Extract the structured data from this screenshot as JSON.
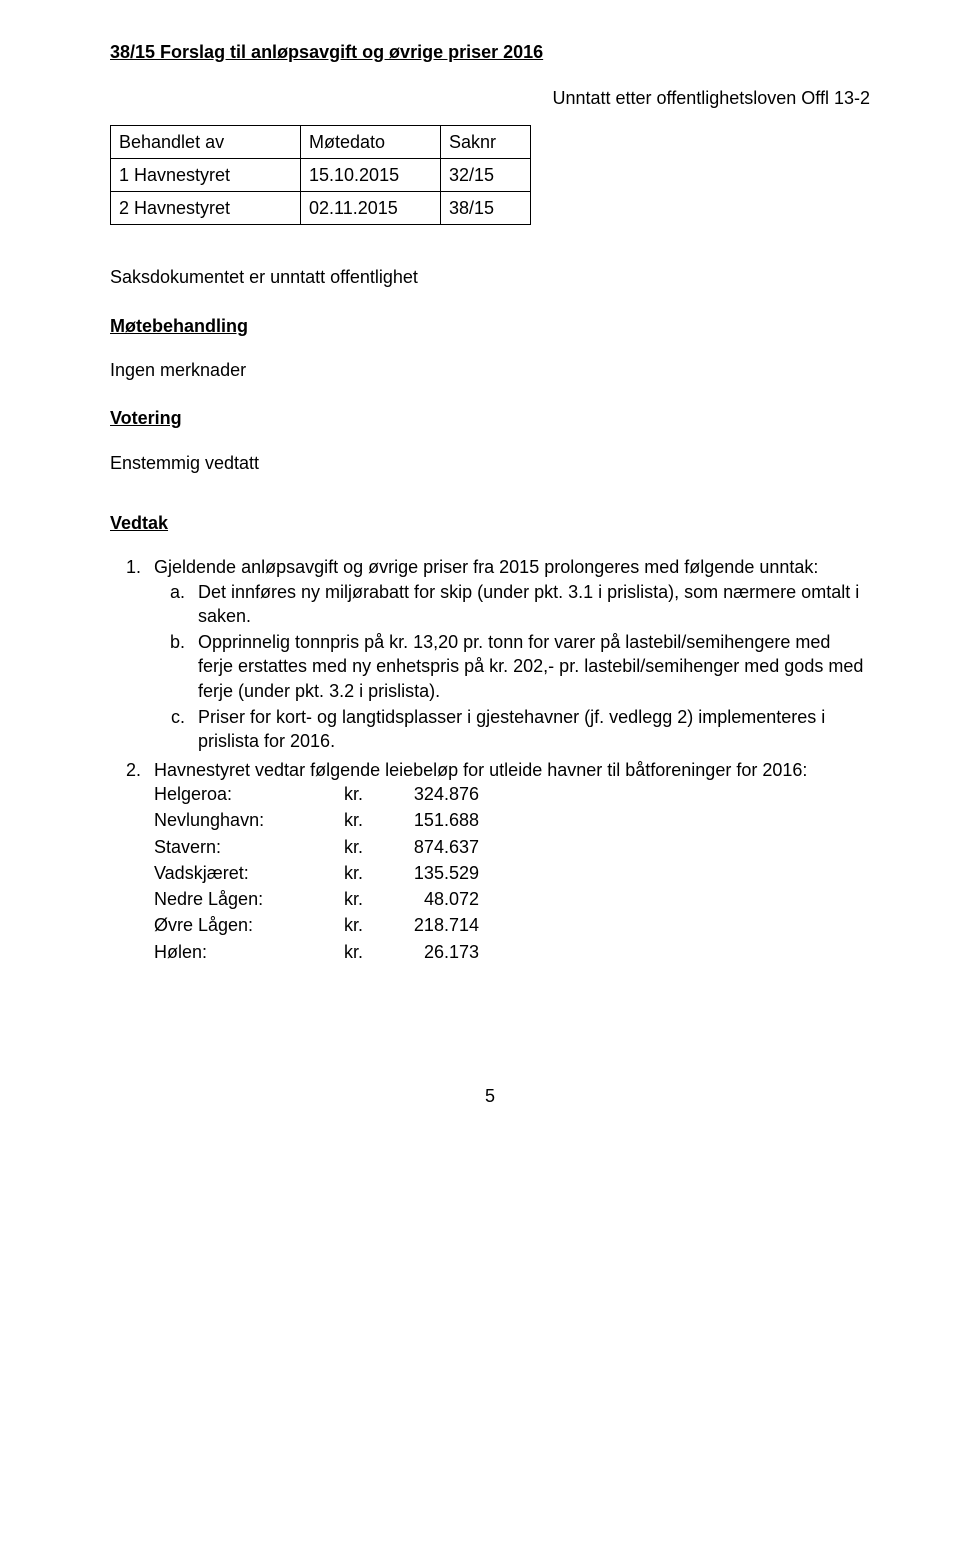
{
  "title": "38/15 Forslag til anløpsavgift og øvrige priser 2016",
  "exemption": "Unntatt etter offentlighetsloven Offl 13-2",
  "meeting_table": {
    "headers": [
      "Behandlet av",
      "Møtedato",
      "Saknr"
    ],
    "rows": [
      [
        "1 Havnestyret",
        "15.10.2015",
        "32/15"
      ],
      [
        "2 Havnestyret",
        "02.11.2015",
        "38/15"
      ]
    ]
  },
  "doc_note": "Saksdokumentet er unntatt offentlighet",
  "sections": {
    "motebehandling_head": "Møtebehandling",
    "motebehandling_body": "Ingen merknader",
    "votering_head": "Votering",
    "votering_body": "Enstemmig vedtatt",
    "vedtak_head": "Vedtak"
  },
  "list": {
    "item1": "Gjeldende anløpsavgift og øvrige priser fra 2015 prolongeres med følgende unntak:",
    "sub_a": "Det innføres ny miljørabatt for skip (under pkt. 3.1 i prislista), som nærmere omtalt i saken.",
    "sub_b": "Opprinnelig tonnpris på kr. 13,20 pr. tonn for varer på lastebil/semihengere med ferje erstattes med ny enhetspris på kr. 202,- pr. lastebil/semihenger med gods med ferje (under pkt. 3.2 i prislista).",
    "sub_c": "Priser for kort- og langtidsplasser i gjestehavner (jf. vedlegg 2) implementeres i prislista for 2016.",
    "item2": "Havnestyret vedtar følgende leiebeløp for utleide havner til båtforeninger for 2016:"
  },
  "prices": [
    {
      "label": "Helgeroa:",
      "kr": "kr.",
      "val": "324.876"
    },
    {
      "label": "Nevlunghavn:",
      "kr": "kr.",
      "val": "151.688"
    },
    {
      "label": "Stavern:",
      "kr": "kr.",
      "val": "874.637"
    },
    {
      "label": "Vadskjæret:",
      "kr": "kr.",
      "val": "135.529"
    },
    {
      "label": "Nedre Lågen:",
      "kr": "kr.",
      "val": "48.072"
    },
    {
      "label": "Øvre Lågen:",
      "kr": "kr.",
      "val": "218.714"
    },
    {
      "label": "Hølen:",
      "kr": "kr.",
      "val": "26.173"
    }
  ],
  "page_number": "5"
}
